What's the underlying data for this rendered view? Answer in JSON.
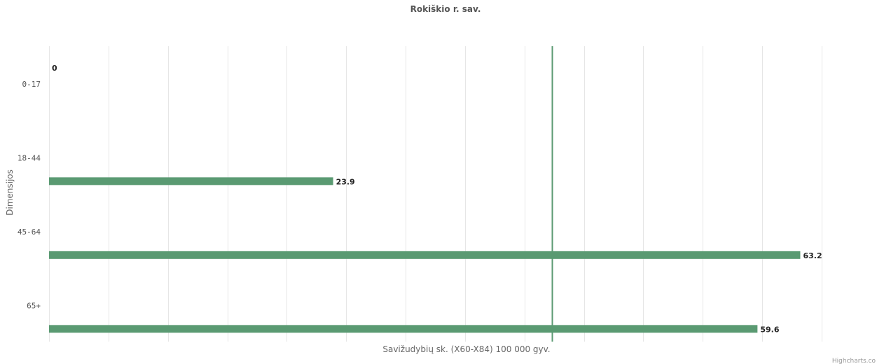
{
  "chart_data": {
    "type": "bar",
    "orientation": "horizontal",
    "title": "Rokiškio r. sav.",
    "xlabel": "Savižudybių sk. (X60-X84) 100 000 gyv.",
    "ylabel": "Dimensijos",
    "categories": [
      "0-17",
      "18-44",
      "45-64",
      "65+"
    ],
    "series": [
      {
        "values": [
          0,
          23.9,
          63.2,
          59.6
        ],
        "color": "#5a9a72"
      }
    ],
    "data_labels": [
      "0",
      "23.9",
      "63.2",
      "59.6"
    ],
    "xlim": [
      0,
      65
    ],
    "gridline_interval": 5,
    "plot_line": {
      "value": 42.3,
      "color": "#5a9a72"
    },
    "grid": true,
    "legend": false
  },
  "credits": "Highcharts.co"
}
